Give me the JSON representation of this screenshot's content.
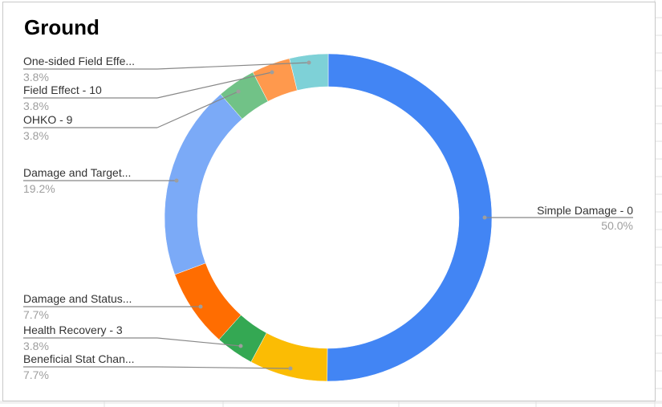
{
  "chart_data": {
    "type": "pie",
    "title": "Ground",
    "donut": true,
    "legend": "none",
    "labels_display": "callout",
    "slices": [
      {
        "label": "Simple Damage - 0",
        "value": 50.0,
        "percent_label": "50.0%",
        "color": "#4285f4"
      },
      {
        "label": "Beneficial Stat Chan...",
        "value": 7.7,
        "percent_label": "7.7%",
        "color": "#fbbc04"
      },
      {
        "label": "Health Recovery - 3",
        "value": 3.8,
        "percent_label": "3.8%",
        "color": "#34a853"
      },
      {
        "label": "Damage and Status...",
        "value": 7.7,
        "percent_label": "7.7%",
        "color": "#ff6d01"
      },
      {
        "label": "Damage and Target...",
        "value": 19.2,
        "percent_label": "19.2%",
        "color": "#7baaf7"
      },
      {
        "label": "OHKO - 9",
        "value": 3.8,
        "percent_label": "3.8%",
        "color": "#71c287"
      },
      {
        "label": "Field Effect - 10",
        "value": 3.8,
        "percent_label": "3.8%",
        "color": "#ff994d"
      },
      {
        "label": "One-sided Field Effe...",
        "value": 3.8,
        "percent_label": "3.8%",
        "color": "#7ed1d7"
      }
    ]
  }
}
